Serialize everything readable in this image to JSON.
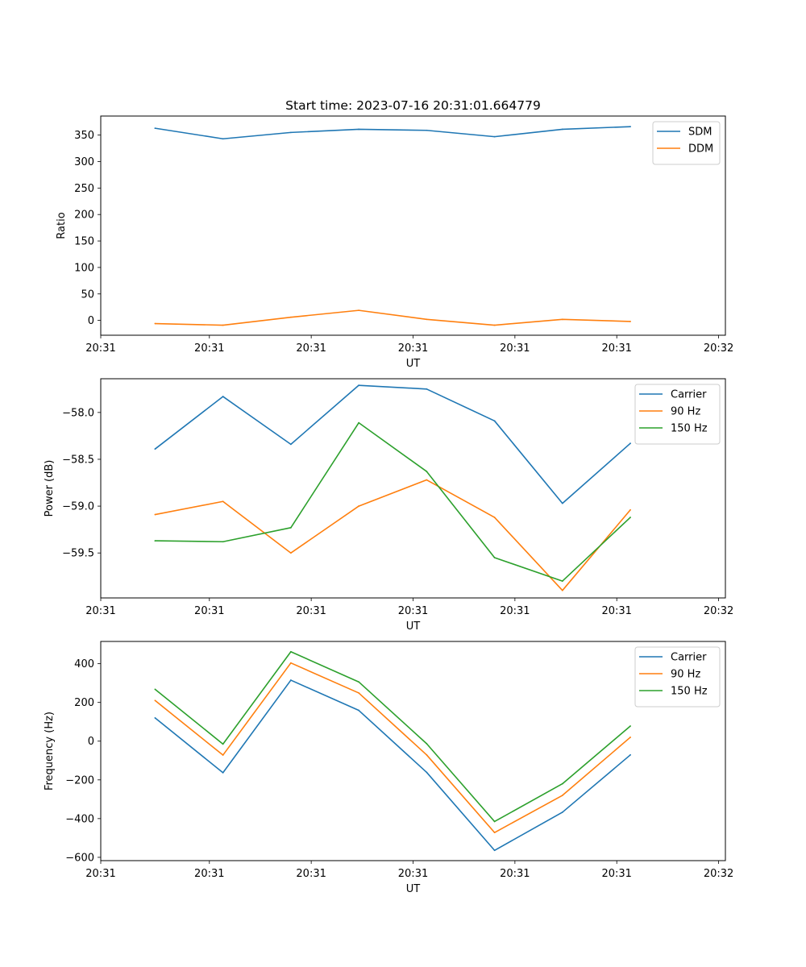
{
  "figure": {
    "title": "Start time: 2023-07-16 20:31:01.664779"
  },
  "colors": {
    "blue": "#1f77b4",
    "orange": "#ff7f0e",
    "green": "#2ca02c"
  },
  "chart_data": [
    {
      "type": "line",
      "title": "Start time: 2023-07-16 20:31:01.664779",
      "xlabel": "UT",
      "ylabel": "Ratio",
      "x": [
        1,
        2,
        3,
        4,
        5,
        6,
        7,
        8
      ],
      "xlim": [
        0.2,
        9.4
      ],
      "ylim": [
        -28,
        386
      ],
      "x_ticks": [
        0.2,
        1.8,
        3.3,
        4.8,
        6.3,
        7.8,
        9.3
      ],
      "x_tick_labels": [
        "20:31",
        "20:31",
        "20:31",
        "20:31",
        "20:31",
        "20:31",
        "20:32"
      ],
      "y_ticks": [
        0,
        50,
        100,
        150,
        200,
        250,
        300,
        350
      ],
      "y_tick_labels": [
        "0",
        "50",
        "100",
        "150",
        "200",
        "250",
        "300",
        "350"
      ],
      "legend_position": "top-right",
      "series": [
        {
          "name": "SDM",
          "color": "blue",
          "values": [
            363,
            343,
            355,
            361,
            359,
            347,
            361,
            366
          ]
        },
        {
          "name": "DDM",
          "color": "orange",
          "values": [
            -6,
            -9,
            6,
            19,
            2,
            -9,
            2,
            -2
          ]
        }
      ]
    },
    {
      "type": "line",
      "title": "",
      "xlabel": "UT",
      "ylabel": "Power (dB)",
      "x": [
        1,
        2,
        3,
        4,
        5,
        6,
        7,
        8
      ],
      "xlim": [
        0.2,
        9.4
      ],
      "ylim": [
        -59.98,
        -57.64
      ],
      "x_ticks": [
        0.2,
        1.8,
        3.3,
        4.8,
        6.3,
        7.8,
        9.3
      ],
      "x_tick_labels": [
        "20:31",
        "20:31",
        "20:31",
        "20:31",
        "20:31",
        "20:31",
        "20:32"
      ],
      "y_ticks": [
        -58.0,
        -58.5,
        -59.0,
        -59.5
      ],
      "y_tick_labels": [
        "−58.0",
        "−58.5",
        "−59.0",
        "−59.5"
      ],
      "legend_position": "top-right",
      "series": [
        {
          "name": "Carrier",
          "color": "blue",
          "values": [
            -58.39,
            -57.83,
            -58.34,
            -57.71,
            -57.75,
            -58.09,
            -58.97,
            -58.33
          ]
        },
        {
          "name": "90 Hz",
          "color": "orange",
          "values": [
            -59.09,
            -58.95,
            -59.5,
            -59.0,
            -58.72,
            -59.12,
            -59.9,
            -59.04
          ]
        },
        {
          "name": "150 Hz",
          "color": "green",
          "values": [
            -59.37,
            -59.38,
            -59.23,
            -58.11,
            -58.63,
            -59.55,
            -59.8,
            -59.12
          ]
        }
      ]
    },
    {
      "type": "line",
      "title": "",
      "xlabel": "UT",
      "ylabel": "Frequency (Hz)",
      "x": [
        1,
        2,
        3,
        4,
        5,
        6,
        7,
        8
      ],
      "xlim": [
        0.2,
        9.4
      ],
      "ylim": [
        -617,
        515
      ],
      "x_ticks": [
        0.2,
        1.8,
        3.3,
        4.8,
        6.3,
        7.8,
        9.3
      ],
      "x_tick_labels": [
        "20:31",
        "20:31",
        "20:31",
        "20:31",
        "20:31",
        "20:31",
        "20:32"
      ],
      "y_ticks": [
        -600,
        -400,
        -200,
        0,
        200,
        400
      ],
      "y_tick_labels": [
        "−600",
        "−400",
        "−200",
        "0",
        "200",
        "400"
      ],
      "legend_position": "top-right",
      "series": [
        {
          "name": "Carrier",
          "color": "blue",
          "values": [
            120,
            -163,
            315,
            159,
            -161,
            -564,
            -367,
            -71
          ]
        },
        {
          "name": "90 Hz",
          "color": "orange",
          "values": [
            210,
            -72,
            404,
            249,
            -71,
            -472,
            -280,
            20
          ]
        },
        {
          "name": "150 Hz",
          "color": "green",
          "values": [
            268,
            -15,
            462,
            306,
            -13,
            -415,
            -220,
            78
          ]
        }
      ]
    }
  ]
}
